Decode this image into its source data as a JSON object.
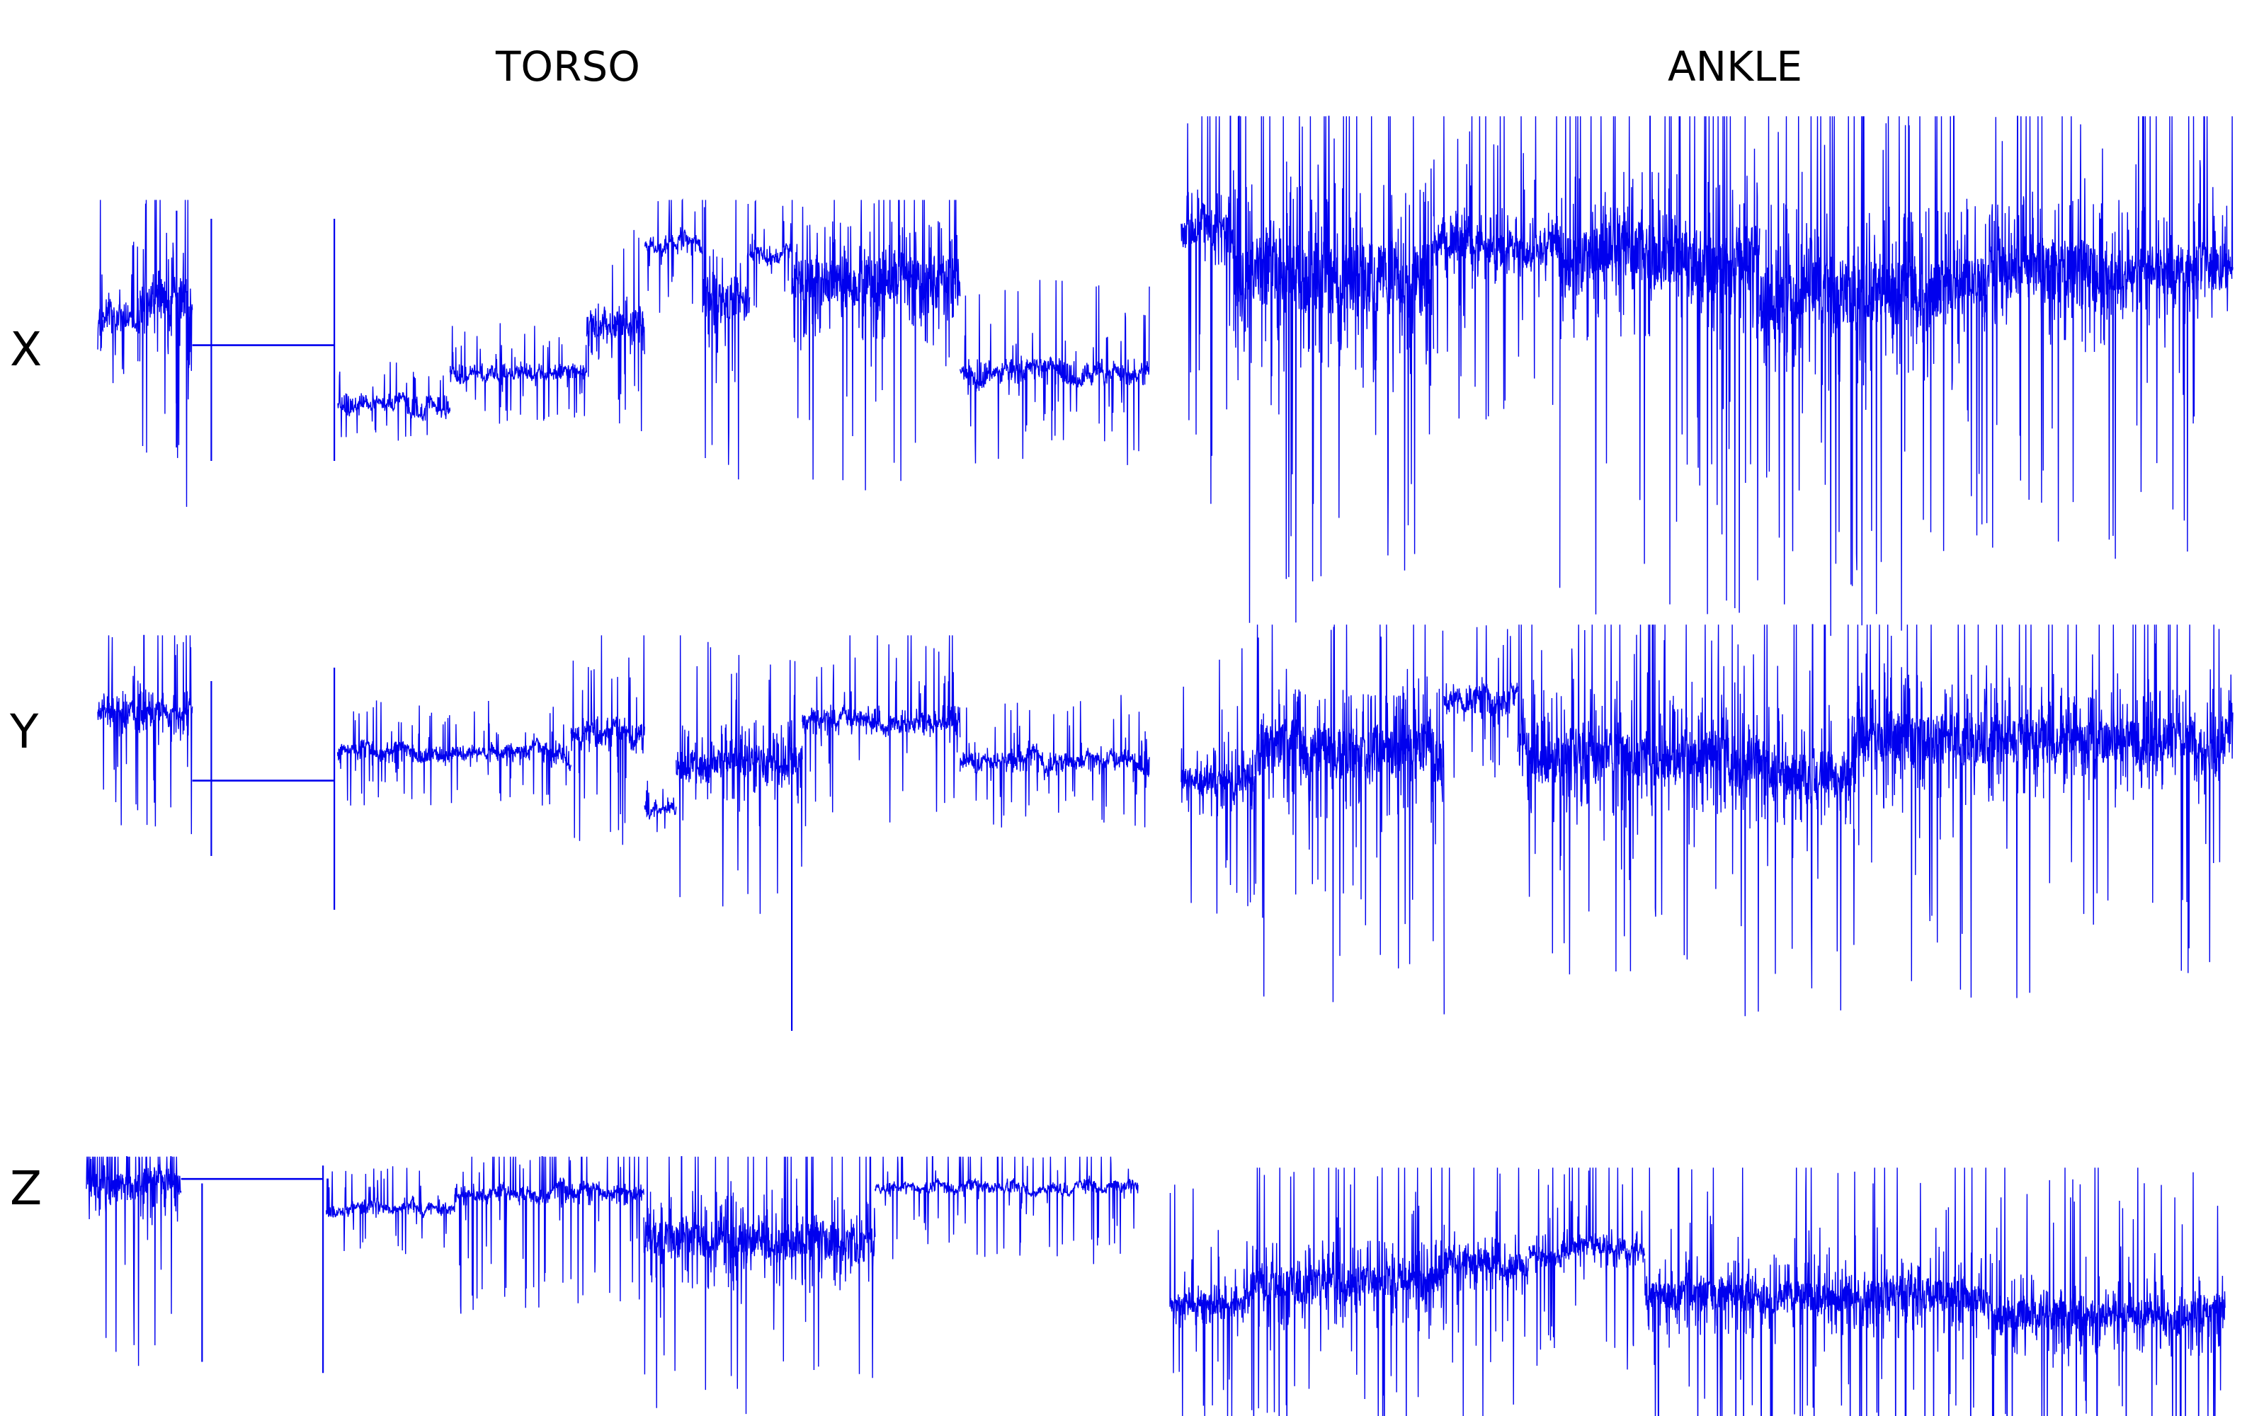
{
  "headers": {
    "torso": "TORSO",
    "ankle": "ANKLE"
  },
  "rows": {
    "x": "X",
    "y": "Y",
    "z": "Z"
  },
  "colors": {
    "trace": "#0000ee",
    "background": "#ffffff",
    "text": "#000000"
  },
  "chart_data": [
    {
      "type": "line",
      "sensor": "TORSO",
      "axis": "X",
      "grid": false,
      "segments": [
        {
          "kind": "noisy",
          "from": 0.0,
          "to": 0.005,
          "base": 0.55,
          "amp": 0.45,
          "spike": 0.9
        },
        {
          "kind": "noisy",
          "from": 0.005,
          "to": 0.04,
          "base": 0.58,
          "amp": 0.15,
          "spike": 0.3
        },
        {
          "kind": "noisy",
          "from": 0.04,
          "to": 0.09,
          "base": 0.62,
          "amp": 0.45,
          "spike": 0.85
        },
        {
          "kind": "spike",
          "at": 0.075,
          "lo": 0.1,
          "hi": 0.98
        },
        {
          "kind": "flat",
          "from": 0.09,
          "to": 0.225,
          "base": 0.48
        },
        {
          "kind": "spike",
          "at": 0.108,
          "lo": 0.05,
          "hi": 0.95
        },
        {
          "kind": "spike",
          "at": 0.225,
          "lo": 0.05,
          "hi": 0.95
        },
        {
          "kind": "noisy",
          "from": 0.228,
          "to": 0.335,
          "base": 0.27,
          "amp": 0.06,
          "spike": 0.15
        },
        {
          "kind": "noisy",
          "from": 0.335,
          "to": 0.465,
          "base": 0.38,
          "amp": 0.06,
          "spike": 0.2
        },
        {
          "kind": "noisy",
          "from": 0.465,
          "to": 0.52,
          "base": 0.55,
          "amp": 0.25,
          "spike": 0.5
        },
        {
          "kind": "noisy",
          "from": 0.52,
          "to": 0.575,
          "base": 0.85,
          "amp": 0.08,
          "spike": 0.3
        },
        {
          "kind": "noisy",
          "from": 0.575,
          "to": 0.62,
          "base": 0.65,
          "amp": 0.4,
          "spike": 0.7
        },
        {
          "kind": "noisy",
          "from": 0.62,
          "to": 0.66,
          "base": 0.82,
          "amp": 0.08,
          "spike": 0.2
        },
        {
          "kind": "noisy",
          "from": 0.66,
          "to": 0.82,
          "base": 0.72,
          "amp": 0.45,
          "spike": 0.8
        },
        {
          "kind": "noisy",
          "from": 0.82,
          "to": 1.0,
          "base": 0.38,
          "amp": 0.1,
          "spike": 0.35
        }
      ]
    },
    {
      "type": "line",
      "sensor": "TORSO",
      "axis": "Y",
      "grid": false,
      "segments": [
        {
          "kind": "noisy",
          "from": 0.0,
          "to": 0.09,
          "base": 0.73,
          "amp": 0.18,
          "spike": 0.45
        },
        {
          "kind": "flat",
          "from": 0.09,
          "to": 0.225,
          "base": 0.48
        },
        {
          "kind": "spike",
          "at": 0.108,
          "lo": 0.2,
          "hi": 0.85
        },
        {
          "kind": "spike",
          "at": 0.225,
          "lo": 0.0,
          "hi": 0.9
        },
        {
          "kind": "noisy",
          "from": 0.228,
          "to": 0.45,
          "base": 0.58,
          "amp": 0.07,
          "spike": 0.2
        },
        {
          "kind": "noisy",
          "from": 0.45,
          "to": 0.52,
          "base": 0.65,
          "amp": 0.15,
          "spike": 0.45
        },
        {
          "kind": "noisy",
          "from": 0.52,
          "to": 0.55,
          "base": 0.38,
          "amp": 0.05,
          "spike": 0.1
        },
        {
          "kind": "noisy",
          "from": 0.55,
          "to": 0.67,
          "base": 0.55,
          "amp": 0.3,
          "spike": 0.6
        },
        {
          "kind": "spike",
          "at": 0.66,
          "lo": -0.45,
          "hi": 0.6
        },
        {
          "kind": "noisy",
          "from": 0.67,
          "to": 0.82,
          "base": 0.7,
          "amp": 0.12,
          "spike": 0.4
        },
        {
          "kind": "noisy",
          "from": 0.82,
          "to": 1.0,
          "base": 0.55,
          "amp": 0.08,
          "spike": 0.25
        }
      ]
    },
    {
      "type": "line",
      "sensor": "TORSO",
      "axis": "Z",
      "grid": false,
      "segments": [
        {
          "kind": "noisy",
          "from": 0.0,
          "to": 0.09,
          "base": 0.9,
          "amp": 0.35,
          "spike": 0.85
        },
        {
          "kind": "flat",
          "from": 0.09,
          "to": 0.225,
          "base": 0.92
        },
        {
          "kind": "spike",
          "at": 0.11,
          "lo": 0.1,
          "hi": 0.9
        },
        {
          "kind": "spike",
          "at": 0.225,
          "lo": 0.05,
          "hi": 0.98
        },
        {
          "kind": "noisy",
          "from": 0.228,
          "to": 0.35,
          "base": 0.78,
          "amp": 0.04,
          "spike": 0.2
        },
        {
          "kind": "noisy",
          "from": 0.35,
          "to": 0.53,
          "base": 0.85,
          "amp": 0.1,
          "spike": 0.55
        },
        {
          "kind": "noisy",
          "from": 0.53,
          "to": 0.75,
          "base": 0.65,
          "amp": 0.45,
          "spike": 0.85
        },
        {
          "kind": "noisy",
          "from": 0.75,
          "to": 1.0,
          "base": 0.88,
          "amp": 0.05,
          "spike": 0.35
        }
      ]
    },
    {
      "type": "line",
      "sensor": "ANKLE",
      "axis": "X",
      "grid": false,
      "segments": [
        {
          "kind": "noisy",
          "from": 0.0,
          "to": 0.05,
          "base": 0.72,
          "amp": 0.2,
          "spike": 0.8
        },
        {
          "kind": "noisy",
          "from": 0.05,
          "to": 0.24,
          "base": 0.6,
          "amp": 0.5,
          "spike": 0.95
        },
        {
          "kind": "noisy",
          "from": 0.24,
          "to": 0.36,
          "base": 0.68,
          "amp": 0.2,
          "spike": 0.5
        },
        {
          "kind": "noisy",
          "from": 0.36,
          "to": 0.55,
          "base": 0.65,
          "amp": 0.45,
          "spike": 0.95
        },
        {
          "kind": "noisy",
          "from": 0.55,
          "to": 0.74,
          "base": 0.55,
          "amp": 0.5,
          "spike": 0.9
        },
        {
          "kind": "noisy",
          "from": 0.74,
          "to": 0.88,
          "base": 0.62,
          "amp": 0.4,
          "spike": 0.75
        },
        {
          "kind": "noisy",
          "from": 0.88,
          "to": 1.0,
          "base": 0.62,
          "amp": 0.3,
          "spike": 0.85
        }
      ]
    },
    {
      "type": "line",
      "sensor": "ANKLE",
      "axis": "Y",
      "grid": false,
      "segments": [
        {
          "kind": "noisy",
          "from": 0.0,
          "to": 0.07,
          "base": 0.45,
          "amp": 0.25,
          "spike": 0.5
        },
        {
          "kind": "noisy",
          "from": 0.07,
          "to": 0.25,
          "base": 0.55,
          "amp": 0.5,
          "spike": 0.95
        },
        {
          "kind": "noisy",
          "from": 0.25,
          "to": 0.32,
          "base": 0.75,
          "amp": 0.12,
          "spike": 0.3
        },
        {
          "kind": "noisy",
          "from": 0.32,
          "to": 0.52,
          "base": 0.55,
          "amp": 0.45,
          "spike": 0.85
        },
        {
          "kind": "noisy",
          "from": 0.52,
          "to": 0.64,
          "base": 0.5,
          "amp": 0.45,
          "spike": 0.9
        },
        {
          "kind": "noisy",
          "from": 0.64,
          "to": 0.82,
          "base": 0.6,
          "amp": 0.5,
          "spike": 0.95
        },
        {
          "kind": "noisy",
          "from": 0.82,
          "to": 1.0,
          "base": 0.6,
          "amp": 0.4,
          "spike": 0.85
        }
      ]
    },
    {
      "type": "line",
      "sensor": "ANKLE",
      "axis": "Z",
      "grid": false,
      "segments": [
        {
          "kind": "noisy",
          "from": 0.0,
          "to": 0.07,
          "base": 0.35,
          "amp": 0.2,
          "spike": 0.6
        },
        {
          "kind": "noisy",
          "from": 0.07,
          "to": 0.26,
          "base": 0.45,
          "amp": 0.45,
          "spike": 0.9
        },
        {
          "kind": "noisy",
          "from": 0.26,
          "to": 0.34,
          "base": 0.55,
          "amp": 0.3,
          "spike": 0.75
        },
        {
          "kind": "noisy",
          "from": 0.34,
          "to": 0.45,
          "base": 0.62,
          "amp": 0.18,
          "spike": 0.6
        },
        {
          "kind": "noisy",
          "from": 0.45,
          "to": 0.62,
          "base": 0.4,
          "amp": 0.4,
          "spike": 0.85
        },
        {
          "kind": "noisy",
          "from": 0.62,
          "to": 0.78,
          "base": 0.4,
          "amp": 0.45,
          "spike": 0.95
        },
        {
          "kind": "noisy",
          "from": 0.78,
          "to": 1.0,
          "base": 0.3,
          "amp": 0.4,
          "spike": 0.85
        }
      ]
    }
  ]
}
